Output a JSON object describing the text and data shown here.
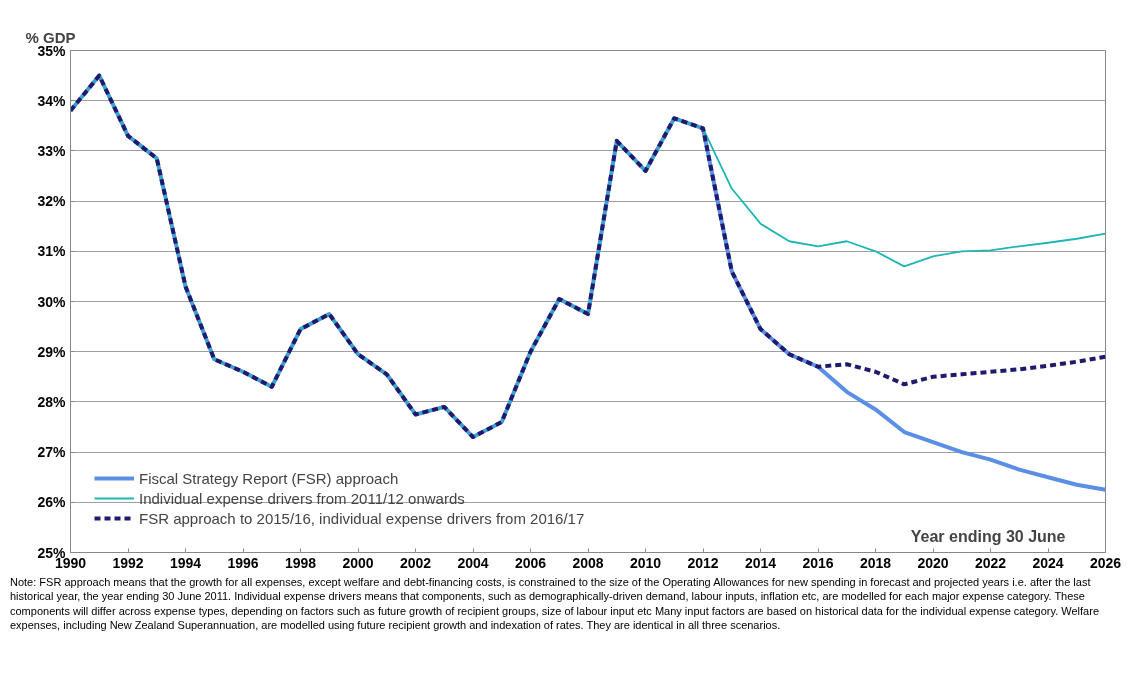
{
  "chart_data": {
    "type": "line",
    "ylabel": "% GDP",
    "xlabel": "Year ending 30 June",
    "x": [
      1990,
      1991,
      1992,
      1993,
      1994,
      1995,
      1996,
      1997,
      1998,
      1999,
      2000,
      2001,
      2002,
      2003,
      2004,
      2005,
      2006,
      2007,
      2008,
      2009,
      2010,
      2011,
      2012,
      2013,
      2014,
      2015,
      2016,
      2017,
      2018,
      2019,
      2020,
      2021,
      2022,
      2023,
      2024,
      2025,
      2026
    ],
    "series": [
      {
        "name": "Fiscal Strategy Report (FSR) approach",
        "color": "#5b8fe6",
        "line_style": "solid",
        "values": [
          33.8,
          34.5,
          33.3,
          32.85,
          30.3,
          28.85,
          28.6,
          28.3,
          29.45,
          29.75,
          28.95,
          28.55,
          27.75,
          27.9,
          27.3,
          27.6,
          29.0,
          30.05,
          29.75,
          33.2,
          32.6,
          33.65,
          33.45,
          30.6,
          29.45,
          28.95,
          28.7,
          28.2,
          27.85,
          27.4,
          27.2,
          27.0,
          26.85,
          26.65,
          26.5,
          26.35,
          26.25
        ]
      },
      {
        "name": "Individual expense drivers from 2011/12 onwards",
        "color": "#1fb5b5",
        "line_style": "solid",
        "values": [
          33.8,
          34.5,
          33.3,
          32.85,
          30.3,
          28.85,
          28.6,
          28.3,
          29.45,
          29.75,
          28.95,
          28.55,
          27.75,
          27.9,
          27.3,
          27.6,
          29.0,
          30.05,
          29.75,
          33.2,
          32.6,
          33.65,
          33.45,
          32.25,
          31.55,
          31.2,
          31.1,
          31.2,
          31.0,
          30.7,
          30.9,
          31.0,
          31.02,
          31.1,
          31.17,
          31.25,
          31.35
        ]
      },
      {
        "name": "FSR approach to 2015/16, individual expense drivers from 2016/17",
        "color": "#1f1a6e",
        "line_style": "dashed",
        "values": [
          33.8,
          34.5,
          33.3,
          32.85,
          30.3,
          28.85,
          28.6,
          28.3,
          29.45,
          29.75,
          28.95,
          28.55,
          27.75,
          27.9,
          27.3,
          27.6,
          29.0,
          30.05,
          29.75,
          33.2,
          32.6,
          33.65,
          33.45,
          30.6,
          29.45,
          28.95,
          28.7,
          28.75,
          28.6,
          28.35,
          28.5,
          28.55,
          28.6,
          28.65,
          28.72,
          28.8,
          28.9
        ]
      }
    ],
    "xlim": [
      1990,
      2026
    ],
    "xticks": [
      1990,
      1992,
      1994,
      1996,
      1998,
      2000,
      2002,
      2004,
      2006,
      2008,
      2010,
      2012,
      2014,
      2016,
      2018,
      2020,
      2022,
      2024,
      2026
    ],
    "ylim": [
      25,
      35
    ],
    "yticks": [
      {
        "value": 25,
        "label": "25%"
      },
      {
        "value": 26,
        "label": "26%"
      },
      {
        "value": 27,
        "label": "27%"
      },
      {
        "value": 28,
        "label": "28%"
      },
      {
        "value": 29,
        "label": "29%"
      },
      {
        "value": 30,
        "label": "30%"
      },
      {
        "value": 31,
        "label": "31%"
      },
      {
        "value": 32,
        "label": "32%"
      },
      {
        "value": 33,
        "label": "33%"
      },
      {
        "value": 34,
        "label": "34%"
      },
      {
        "value": 35,
        "label": "35%"
      }
    ],
    "grid": "y",
    "legend": "bottom left",
    "marker": "none",
    "annotations": [
      "Note: FSR approach means that the growth for all expenses, except welfare and debt-financing costs, is constrained to the size of the Operating Allowances for new spending in forecast and projected years i.e. after the last historical year, the year ending 30 June 2011.  Individual expense drivers means that components, such as demographically-driven demand, labour inputs, inflation etc, are modelled for each major expense category.  These components will differ across expense types, depending on factors such as future growth of recipient groups, size of labour input etc Many input factors are based on historical data for the individual expense category.  Welfare expenses, including New Zealand Superannuation, are modelled using future recipient growth and indexation of rates.  They are identical in all three scenarios."
    ]
  }
}
